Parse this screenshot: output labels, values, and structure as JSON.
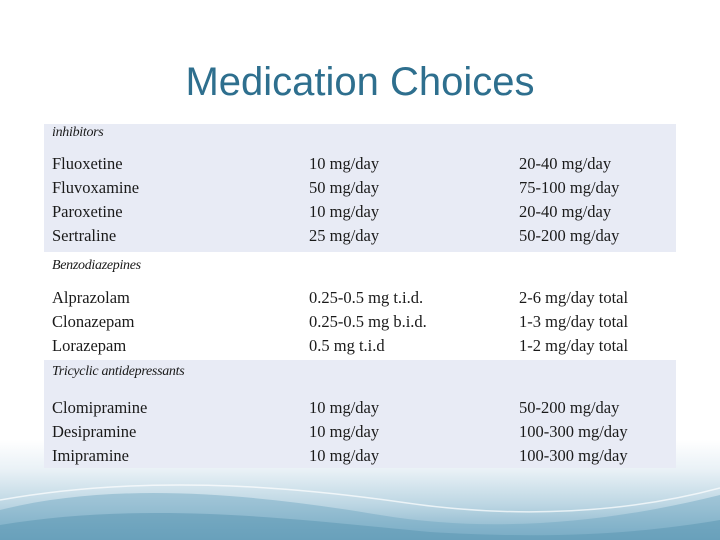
{
  "slide": {
    "title": "Medication Choices"
  },
  "table": {
    "sections": [
      {
        "header": "inhibitors",
        "rows": [
          {
            "drug": "Fluoxetine",
            "starting_dose": "10 mg/day",
            "dose_range": "20-40 mg/day"
          },
          {
            "drug": "Fluvoxamine",
            "starting_dose": "50 mg/day",
            "dose_range": "75-100 mg/day"
          },
          {
            "drug": "Paroxetine",
            "starting_dose": "10 mg/day",
            "dose_range": "20-40 mg/day"
          },
          {
            "drug": "Sertraline",
            "starting_dose": "25 mg/day",
            "dose_range": "50-200 mg/day"
          }
        ]
      },
      {
        "header": "Benzodiazepines",
        "rows": [
          {
            "drug": "Alprazolam",
            "starting_dose": "0.25-0.5 mg t.i.d.",
            "dose_range": "2-6 mg/day total"
          },
          {
            "drug": "Clonazepam",
            "starting_dose": "0.25-0.5 mg b.i.d.",
            "dose_range": "1-3 mg/day total"
          },
          {
            "drug": "Lorazepam",
            "starting_dose": "0.5 mg t.i.d",
            "dose_range": "1-2 mg/day total"
          }
        ]
      },
      {
        "header": "Tricyclic antidepressants",
        "rows": [
          {
            "drug": "Clomipramine",
            "starting_dose": "10 mg/day",
            "dose_range": "50-200 mg/day"
          },
          {
            "drug": "Desipramine",
            "starting_dose": "10 mg/day",
            "dose_range": "100-300 mg/day"
          },
          {
            "drug": "Imipramine",
            "starting_dose": "10 mg/day",
            "dose_range": "100-300 mg/day"
          }
        ]
      }
    ]
  }
}
